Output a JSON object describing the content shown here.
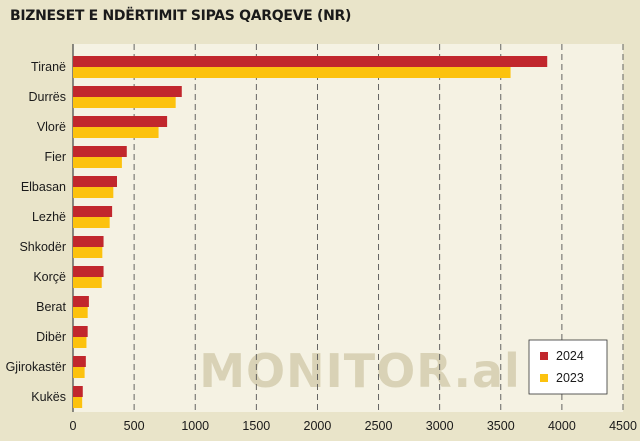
{
  "title": "BIZNESET E NDËRTIMIT SIPAS QARQEVE (NR)",
  "watermark": "MONITOR.al",
  "colors": {
    "series_2024": "#c1272d",
    "series_2023": "#fcc20e",
    "plot_bg": "#f5f2e3",
    "page_bg": "#e9e4c9"
  },
  "chart_data": {
    "type": "bar",
    "orientation": "horizontal",
    "categories": [
      "Tiranë",
      "Durrës",
      "Vlorë",
      "Fier",
      "Elbasan",
      "Lezhë",
      "Shkodër",
      "Korçë",
      "Berat",
      "Dibër",
      "Gjirokastër",
      "Kukës"
    ],
    "series": [
      {
        "name": "2024",
        "color": "#c1272d",
        "values": [
          3880,
          890,
          770,
          440,
          360,
          320,
          250,
          250,
          130,
          120,
          105,
          80
        ]
      },
      {
        "name": "2023",
        "color": "#fcc20e",
        "values": [
          3580,
          840,
          700,
          400,
          330,
          300,
          240,
          235,
          120,
          110,
          95,
          75
        ]
      }
    ],
    "xlim": [
      0,
      4500
    ],
    "xticks": [
      0,
      500,
      1000,
      1500,
      2000,
      2500,
      3000,
      3500,
      4000,
      4500
    ],
    "grid": "vertical-dashed",
    "legend": "bottom-right"
  }
}
